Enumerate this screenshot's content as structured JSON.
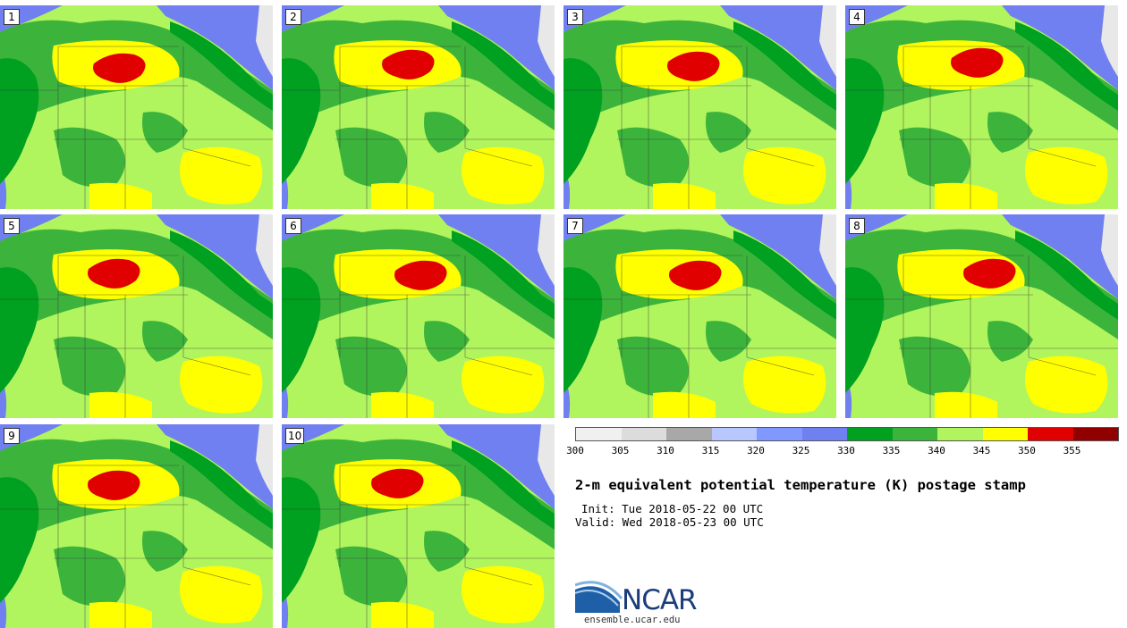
{
  "panels": [
    {
      "label": "1"
    },
    {
      "label": "2"
    },
    {
      "label": "3"
    },
    {
      "label": "4"
    },
    {
      "label": "5"
    },
    {
      "label": "6"
    },
    {
      "label": "7"
    },
    {
      "label": "8"
    },
    {
      "label": "9"
    },
    {
      "label": "10"
    }
  ],
  "colorbar": {
    "colors": [
      "#f0f0f0",
      "#dcdcdc",
      "#a8a8a8",
      "#b8c8ff",
      "#8098ff",
      "#7080f0",
      "#00a020",
      "#3cb43c",
      "#b1f55e",
      "#ffff00",
      "#e00000",
      "#900000"
    ],
    "ticks": [
      "300",
      "305",
      "310",
      "315",
      "320",
      "325",
      "330",
      "335",
      "340",
      "345",
      "350",
      "355"
    ]
  },
  "title": "2-m equivalent potential temperature (K) postage stamp",
  "init": "Init: Tue 2018-05-22 00 UTC",
  "valid": "Valid: Wed 2018-05-23 00 UTC",
  "logo": {
    "name": "NCAR",
    "url": "ensemble.ucar.edu"
  }
}
